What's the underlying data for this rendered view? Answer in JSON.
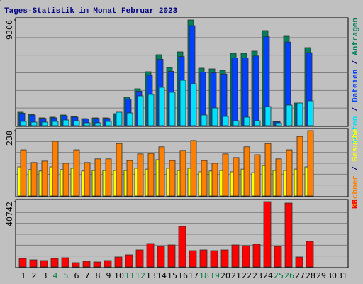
{
  "title": "Tages-Statistik im Monat Februar 2023",
  "legend_separator": " / ",
  "chart_data": [
    {
      "type": "bar",
      "ylim": [
        0,
        9306
      ],
      "yticks": [
        9306
      ],
      "series": [
        {
          "name": "Anfragen",
          "color": "#00805c",
          "values": [
            1187,
            999,
            687,
            750,
            937,
            812,
            625,
            687,
            687,
            1062,
            2498,
            3248,
            4747,
            6246,
            5121,
            6495,
            9306,
            5059,
            4997,
            4872,
            6371,
            6371,
            6558,
            8369,
            375,
            7869,
            1999,
            6870,
            null,
            null,
            null
          ]
        },
        {
          "name": "Dateien",
          "color": "#0040ff",
          "values": [
            1100,
            930,
            640,
            690,
            870,
            750,
            580,
            640,
            640,
            990,
            2330,
            3030,
            4430,
            5850,
            4780,
            6080,
            8800,
            4720,
            4660,
            4550,
            5960,
            5960,
            6130,
            7830,
            350,
            7360,
            1860,
            6430,
            null,
            null,
            null
          ]
        },
        {
          "name": "Seiten",
          "color": "#00e0ff",
          "values": [
            375,
            312,
            312,
            375,
            500,
            437,
            250,
            250,
            375,
            1187,
            1124,
            2623,
            2748,
            3373,
            2935,
            3997,
            3685,
            937,
            1561,
            812,
            437,
            750,
            437,
            1686,
            250,
            1811,
            1999,
            2186,
            null,
            null,
            null
          ]
        }
      ]
    },
    {
      "type": "bar",
      "ylim": [
        0,
        238
      ],
      "yticks": [
        238
      ],
      "series": [
        {
          "name": "Besuche",
          "color": "#ffff00",
          "values": [
            106,
            96,
            91,
            106,
            96,
            101,
            91,
            93,
            93,
            93,
            93,
            101,
            98,
            132,
            101,
            93,
            101,
            88,
            91,
            93,
            88,
            98,
            85,
            111,
            93,
            93,
            98,
            106,
            null,
            null,
            null
          ]
        },
        {
          "name": "Rechner",
          "color": "#ff8000",
          "values": [
            168,
            122,
            127,
            199,
            119,
            168,
            122,
            135,
            135,
            191,
            129,
            153,
            155,
            179,
            129,
            166,
            202,
            129,
            119,
            153,
            140,
            179,
            150,
            191,
            135,
            168,
            217,
            238,
            null,
            null,
            null
          ]
        }
      ]
    },
    {
      "type": "bar",
      "ylim": [
        0,
        40742
      ],
      "yticks": [
        40742
      ],
      "categories": [
        "1",
        "2",
        "3",
        "4",
        "5",
        "6",
        "7",
        "8",
        "9",
        "10",
        "11",
        "12",
        "13",
        "14",
        "15",
        "16",
        "17",
        "18",
        "19",
        "20",
        "21",
        "22",
        "23",
        "24",
        "25",
        "26",
        "27",
        "28",
        "29",
        "30",
        "31"
      ],
      "category_colors": [
        "#000000",
        "#000000",
        "#000000",
        "#008040",
        "#008040",
        "#000000",
        "#000000",
        "#000000",
        "#000000",
        "#000000",
        "#008040",
        "#008040",
        "#000000",
        "#000000",
        "#000000",
        "#000000",
        "#000000",
        "#008040",
        "#008040",
        "#000000",
        "#000000",
        "#000000",
        "#000000",
        "#000000",
        "#008040",
        "#008040",
        "#000000",
        "#000000",
        "#000000",
        "#000000",
        "#000000"
      ],
      "series": [
        {
          "name": "kB",
          "color": "#ff0000",
          "values": [
            5314,
            4428,
            3986,
            5314,
            5757,
            2657,
            3543,
            3100,
            3986,
            6200,
            7528,
            10628,
            14614,
            12842,
            13728,
            25242,
            10185,
            10628,
            10185,
            10628,
            13728,
            13285,
            14171,
            40742,
            12842,
            39856,
            6200,
            15943,
            null,
            null,
            null
          ]
        }
      ]
    }
  ]
}
